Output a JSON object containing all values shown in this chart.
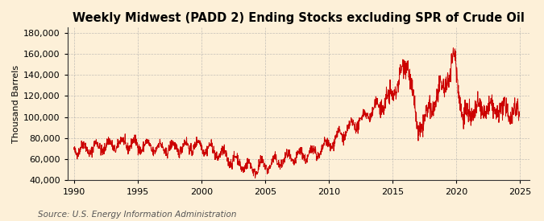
{
  "title": "Weekly Midwest (PADD 2) Ending Stocks excluding SPR of Crude Oil",
  "ylabel": "Thousand Barrels",
  "source": "Source: U.S. Energy Information Administration",
  "line_color": "#cc0000",
  "background_color": "#fdf0d8",
  "plot_bg_color": "#fdf0d8",
  "ylim": [
    40000,
    185000
  ],
  "yticks": [
    40000,
    60000,
    80000,
    100000,
    120000,
    140000,
    160000,
    180000
  ],
  "xlim_start": 1989.5,
  "xlim_end": 2025.8,
  "xticks": [
    1990,
    1995,
    2000,
    2005,
    2010,
    2015,
    2020,
    2025
  ],
  "title_fontsize": 10.5,
  "label_fontsize": 8,
  "tick_fontsize": 8,
  "source_fontsize": 7.5,
  "linewidth": 0.7
}
